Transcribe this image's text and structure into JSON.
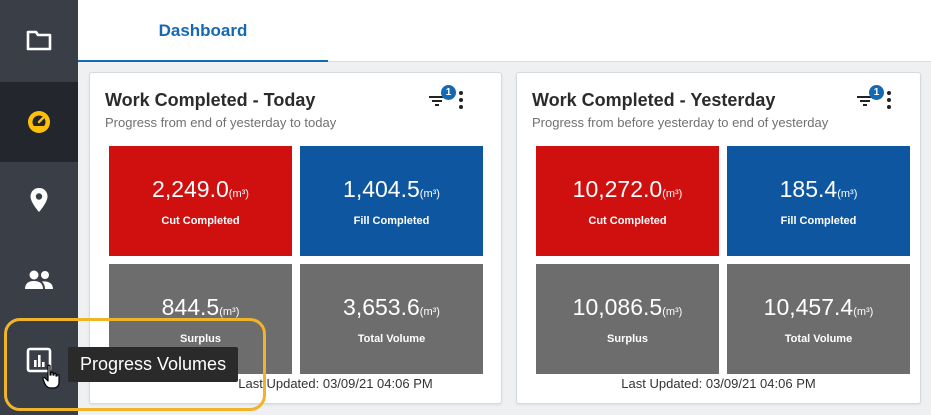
{
  "sidebar": {
    "items": [
      {
        "name": "folder-icon",
        "active": false
      },
      {
        "name": "gauge-icon",
        "active": true
      },
      {
        "name": "location-pin-icon",
        "active": false
      },
      {
        "name": "people-icon",
        "active": false
      },
      {
        "name": "bar-chart-icon",
        "active": false
      }
    ]
  },
  "header": {
    "tabs": [
      {
        "label": "Dashboard",
        "active": true
      }
    ]
  },
  "cards": [
    {
      "title": "Work Completed - Today",
      "subtitle": "Progress from end of yesterday to today",
      "filter_badge": "1",
      "tiles": [
        {
          "value": "2,249.0",
          "unit": "(m³)",
          "label": "Cut Completed",
          "color": "#d00f0f"
        },
        {
          "value": "1,404.5",
          "unit": "(m³)",
          "label": "Fill Completed",
          "color": "#0f56a0"
        },
        {
          "value": "844.5",
          "unit": "(m³)",
          "label": "Surplus",
          "color": "#6d6d6d"
        },
        {
          "value": "3,653.6",
          "unit": "(m³)",
          "label": "Total Volume",
          "color": "#6d6d6d"
        }
      ],
      "last_updated": "Last Updated: 03/09/21 04:06 PM"
    },
    {
      "title": "Work Completed - Yesterday",
      "subtitle": "Progress from before yesterday to end of yesterday",
      "filter_badge": "1",
      "tiles": [
        {
          "value": "10,272.0",
          "unit": "(m³)",
          "label": "Cut Completed",
          "color": "#d00f0f"
        },
        {
          "value": "185.4",
          "unit": "(m³)",
          "label": "Fill Completed",
          "color": "#0f56a0"
        },
        {
          "value": "10,086.5",
          "unit": "(m³)",
          "label": "Surplus",
          "color": "#6d6d6d"
        },
        {
          "value": "10,457.4",
          "unit": "(m³)",
          "label": "Total Volume",
          "color": "#6d6d6d"
        }
      ],
      "last_updated": "Last Updated: 03/09/21 04:06 PM"
    }
  ],
  "tooltip": {
    "text": "Progress Volumes"
  },
  "colors": {
    "accent": "#1569b3",
    "sidebar_bg": "#3a3f47",
    "sidebar_active_bg": "#23272d",
    "highlight": "#f0b429",
    "gauge_icon": "#ffc107"
  }
}
